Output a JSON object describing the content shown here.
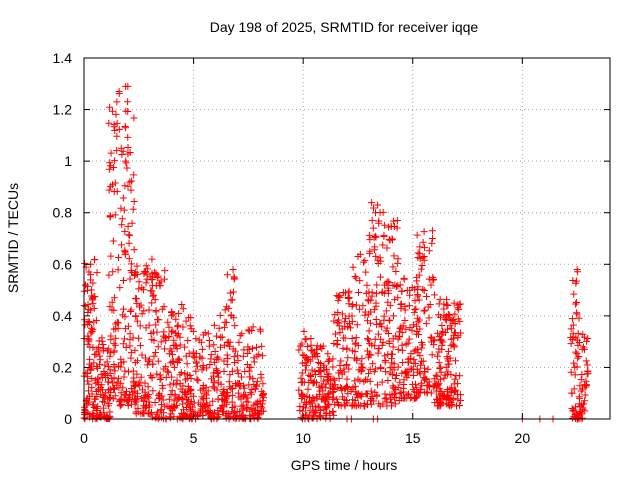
{
  "chart_data": {
    "type": "scatter",
    "title": "Day 198 of 2025, SRMTID for receiver iqqe",
    "xlabel": "GPS time / hours",
    "ylabel": "SRMTID / TECUs",
    "xlim": [
      0,
      24
    ],
    "ylim": [
      0,
      1.4
    ],
    "xticks": [
      0,
      5,
      10,
      15,
      20
    ],
    "yticks": [
      0,
      0.2,
      0.4,
      0.6,
      0.8,
      1,
      1.2,
      1.4
    ],
    "xtick_labels": [
      "0",
      "5",
      "10",
      "15",
      "20"
    ],
    "ytick_labels": [
      "0",
      "0.2",
      "0.4",
      "0.6",
      "0.8",
      "1",
      "1.2",
      "1.4"
    ],
    "grid": true,
    "marker": "+",
    "series_color": "#ff0000",
    "series": [
      {
        "name": "SRMTID",
        "clusters": [
          {
            "x": [
              0.0,
              0.6
            ],
            "y": [
              0.0,
              0.62
            ],
            "n": 110
          },
          {
            "x": [
              0.6,
              1.2
            ],
            "y": [
              0.0,
              0.32
            ],
            "n": 70
          },
          {
            "x": [
              1.1,
              1.7
            ],
            "y": [
              0.05,
              1.28
            ],
            "n": 90
          },
          {
            "x": [
              1.7,
              2.3
            ],
            "y": [
              0.05,
              1.3
            ],
            "n": 90
          },
          {
            "x": [
              2.3,
              3.0
            ],
            "y": [
              0.02,
              0.62
            ],
            "n": 90
          },
          {
            "x": [
              3.0,
              3.8
            ],
            "y": [
              0.0,
              0.58
            ],
            "n": 90
          },
          {
            "x": [
              3.8,
              4.6
            ],
            "y": [
              0.0,
              0.45
            ],
            "n": 90
          },
          {
            "x": [
              4.6,
              5.4
            ],
            "y": [
              0.0,
              0.4
            ],
            "n": 80
          },
          {
            "x": [
              5.4,
              6.2
            ],
            "y": [
              0.0,
              0.37
            ],
            "n": 80
          },
          {
            "x": [
              6.2,
              7.0
            ],
            "y": [
              0.0,
              0.58
            ],
            "n": 90
          },
          {
            "x": [
              7.0,
              7.6
            ],
            "y": [
              0.0,
              0.35
            ],
            "n": 60
          },
          {
            "x": [
              7.6,
              8.2
            ],
            "y": [
              0.0,
              0.37
            ],
            "n": 60
          },
          {
            "x": [
              9.8,
              10.6
            ],
            "y": [
              0.0,
              0.34
            ],
            "n": 90
          },
          {
            "x": [
              10.6,
              11.4
            ],
            "y": [
              0.0,
              0.3
            ],
            "n": 90
          },
          {
            "x": [
              11.4,
              12.2
            ],
            "y": [
              0.05,
              0.5
            ],
            "n": 80
          },
          {
            "x": [
              12.2,
              13.0
            ],
            "y": [
              0.05,
              0.66
            ],
            "n": 80
          },
          {
            "x": [
              13.0,
              13.7
            ],
            "y": [
              0.05,
              0.84
            ],
            "n": 80
          },
          {
            "x": [
              13.7,
              14.4
            ],
            "y": [
              0.05,
              0.77
            ],
            "n": 90
          },
          {
            "x": [
              14.4,
              15.2
            ],
            "y": [
              0.08,
              0.55
            ],
            "n": 90
          },
          {
            "x": [
              15.2,
              16.0
            ],
            "y": [
              0.1,
              0.74
            ],
            "n": 90
          },
          {
            "x": [
              16.0,
              16.6
            ],
            "y": [
              0.05,
              0.48
            ],
            "n": 80
          },
          {
            "x": [
              16.6,
              17.2
            ],
            "y": [
              0.05,
              0.45
            ],
            "n": 70
          },
          {
            "x": [
              22.2,
              22.6
            ],
            "y": [
              0.0,
              0.58
            ],
            "n": 50
          },
          {
            "x": [
              22.6,
              23.0
            ],
            "y": [
              0.0,
              0.36
            ],
            "n": 40
          }
        ],
        "points": [
          [
            1.6,
            1.27
          ],
          [
            1.9,
            1.29
          ],
          [
            1.5,
            1.23
          ],
          [
            2.0,
            1.29
          ],
          [
            1.7,
            1.05
          ],
          [
            1.9,
            1.0
          ],
          [
            13.4,
            0.83
          ],
          [
            13.3,
            0.8
          ],
          [
            14.3,
            0.77
          ],
          [
            13.2,
            0.74
          ],
          [
            15.9,
            0.73
          ],
          [
            15.9,
            0.7
          ],
          [
            12.5,
            0.63
          ],
          [
            3.1,
            0.62
          ],
          [
            6.8,
            0.58
          ],
          [
            22.5,
            0.58
          ],
          [
            0.3,
            0.6
          ],
          [
            0.3,
            0.56
          ],
          [
            12.0,
            0.0
          ],
          [
            12.2,
            0.0
          ],
          [
            13.2,
            0.0
          ],
          [
            13.4,
            0.0
          ],
          [
            20.0,
            0.0
          ],
          [
            20.8,
            0.0
          ],
          [
            21.4,
            0.0
          ],
          [
            22.5,
            0.0
          ],
          [
            22.7,
            0.02
          ]
        ]
      }
    ]
  }
}
